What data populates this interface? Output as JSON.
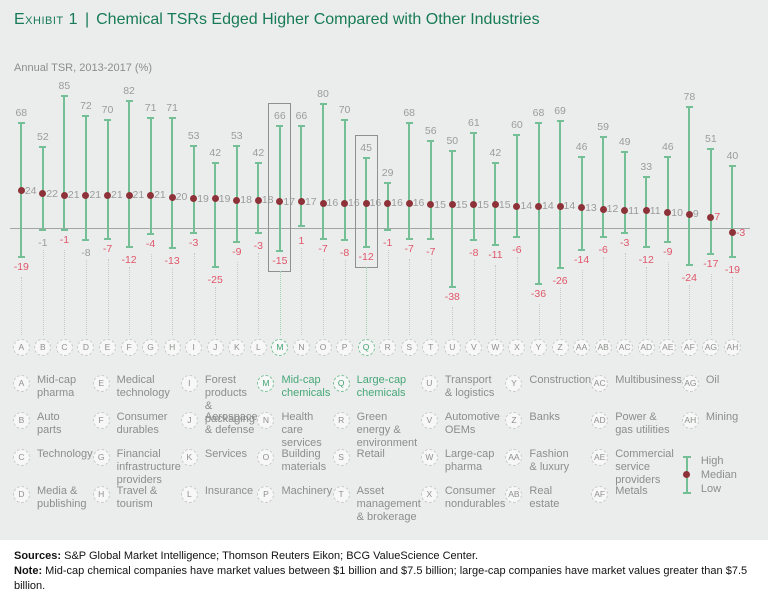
{
  "header": {
    "exhibit_label": "Exhibit 1",
    "separator": "|",
    "title": "Chemical TSRs Edged Higher Compared with Other Industries",
    "subtitle": "Annual TSR, 2013-2017 (%)"
  },
  "colors": {
    "accent_green": "#177b57",
    "line_green": "#74bf95",
    "median_dot": "#8e3239",
    "negative_red": "#e0566a",
    "gray_label": "#9b9b9b",
    "background": "#ebedec"
  },
  "chart_data": {
    "type": "range-high-median-low",
    "title": "Chemical TSRs Edged Higher Compared with Other Industries",
    "ylabel": "Annual TSR, 2013-2017 (%)",
    "ylim": [
      -40,
      90
    ],
    "grid": false,
    "highlighted_categories": [
      "M",
      "Q"
    ],
    "points": [
      {
        "letter": "A",
        "industry": "Mid-cap pharma",
        "high": 68,
        "median": 24,
        "low": -19
      },
      {
        "letter": "B",
        "industry": "Auto parts",
        "high": 52,
        "median": 22,
        "low": -1,
        "low_label_gray": true
      },
      {
        "letter": "C",
        "industry": "Technology",
        "high": 85,
        "median": 21,
        "low": -1
      },
      {
        "letter": "D",
        "industry": "Media & publishing",
        "high": 72,
        "median": 21,
        "low": -8,
        "low_label_gray": true
      },
      {
        "letter": "E",
        "industry": "Medical technology",
        "high": 70,
        "median": 21,
        "low": -7
      },
      {
        "letter": "F",
        "industry": "Consumer durables",
        "high": 82,
        "median": 21,
        "low": -12
      },
      {
        "letter": "G",
        "industry": "Financial infrastructure providers",
        "high": 71,
        "median": 21,
        "low": -4
      },
      {
        "letter": "H",
        "industry": "Travel & tourism",
        "high": 71,
        "median": 20,
        "low": -13
      },
      {
        "letter": "I",
        "industry": "Forest products & packaging",
        "high": 53,
        "median": 19,
        "low": -3
      },
      {
        "letter": "J",
        "industry": "Aerospace & defense",
        "high": 42,
        "median": 19,
        "low": -25
      },
      {
        "letter": "K",
        "industry": "Services",
        "high": 53,
        "median": 18,
        "low": -9
      },
      {
        "letter": "L",
        "industry": "Insurance",
        "high": 42,
        "median": 18,
        "low": -3
      },
      {
        "letter": "M",
        "industry": "Mid-cap chemicals",
        "high": 66,
        "median": 17,
        "low": -15,
        "highlight": true
      },
      {
        "letter": "N",
        "industry": "Health care services",
        "high": 66,
        "median": 17,
        "low": 1
      },
      {
        "letter": "O",
        "industry": "Building materials",
        "high": 80,
        "median": 16,
        "low": -7
      },
      {
        "letter": "P",
        "industry": "Machinery",
        "high": 70,
        "median": 16,
        "low": -8
      },
      {
        "letter": "Q",
        "industry": "Large-cap chemicals",
        "high": 45,
        "median": 16,
        "low": -12,
        "highlight": true
      },
      {
        "letter": "R",
        "industry": "Green energy & environment",
        "high": 29,
        "median": 16,
        "low": -1
      },
      {
        "letter": "S",
        "industry": "Retail",
        "high": 68,
        "median": 16,
        "low": -7
      },
      {
        "letter": "T",
        "industry": "Asset management & brokerage",
        "high": 56,
        "median": 15,
        "low": -7
      },
      {
        "letter": "U",
        "industry": "Transport & logistics",
        "high": 50,
        "median": 15,
        "low": -38
      },
      {
        "letter": "V",
        "industry": "Automotive OEMs",
        "high": 61,
        "median": 15,
        "low": -8
      },
      {
        "letter": "W",
        "industry": "Large-cap pharma",
        "high": 42,
        "median": 15,
        "low": -11
      },
      {
        "letter": "X",
        "industry": "Consumer nondurables",
        "high": 60,
        "median": 14,
        "low": -6
      },
      {
        "letter": "Y",
        "industry": "Construction",
        "high": 68,
        "median": 14,
        "low": -36
      },
      {
        "letter": "Z",
        "industry": "Banks",
        "high": 69,
        "median": 14,
        "low": -26
      },
      {
        "letter": "AA",
        "industry": "Fashion & luxury",
        "high": 46,
        "median": 13,
        "low": -14
      },
      {
        "letter": "AB",
        "industry": "Real estate",
        "high": 59,
        "median": 12,
        "low": -6
      },
      {
        "letter": "AC",
        "industry": "Multibusiness",
        "high": 49,
        "median": 11,
        "low": -3
      },
      {
        "letter": "AD",
        "industry": "Power & gas utilities",
        "high": 33,
        "median": 11,
        "low": -12
      },
      {
        "letter": "AE",
        "industry": "Commercial service providers",
        "high": 46,
        "median": 10,
        "low": -9
      },
      {
        "letter": "AF",
        "industry": "Metals",
        "high": 78,
        "median": 9,
        "low": -24
      },
      {
        "letter": "AG",
        "industry": "Oil",
        "high": 51,
        "median": 7,
        "low": -17,
        "median_label_red": true
      },
      {
        "letter": "AH",
        "industry": "Mining",
        "high": 40,
        "median": -3,
        "low": -19,
        "median_label_red": true
      }
    ]
  },
  "legend": {
    "columns": [
      [
        {
          "letter": "A",
          "label": "Mid-cap\npharma"
        },
        {
          "letter": "B",
          "label": "Auto\nparts"
        },
        {
          "letter": "C",
          "label": "Technology"
        },
        {
          "letter": "D",
          "label": "Media &\npublishing"
        }
      ],
      [
        {
          "letter": "E",
          "label": "Medical\ntechnology"
        },
        {
          "letter": "F",
          "label": "Consumer\ndurables"
        },
        {
          "letter": "G",
          "label": "Financial\ninfrastructure\nproviders"
        },
        {
          "letter": "H",
          "label": "Travel &\ntourism"
        }
      ],
      [
        {
          "letter": "I",
          "label": "Forest\nproducts\n& packaging"
        },
        {
          "letter": "J",
          "label": "Aerospace\n& defense"
        },
        {
          "letter": "K",
          "label": "Services"
        },
        {
          "letter": "L",
          "label": "Insurance"
        }
      ],
      [
        {
          "letter": "M",
          "label": "Mid-cap\nchemicals",
          "green": true
        },
        {
          "letter": "N",
          "label": "Health care\nservices"
        },
        {
          "letter": "O",
          "label": "Building\nmaterials"
        },
        {
          "letter": "P",
          "label": "Machinery"
        }
      ],
      [
        {
          "letter": "Q",
          "label": "Large-cap\nchemicals",
          "green": true
        },
        {
          "letter": "R",
          "label": "Green\nenergy &\nenvironment"
        },
        {
          "letter": "S",
          "label": "Retail"
        },
        {
          "letter": "T",
          "label": "Asset\nmanagement\n& brokerage"
        }
      ],
      [
        {
          "letter": "U",
          "label": "Transport\n& logistics"
        },
        {
          "letter": "V",
          "label": "Automotive\nOEMs"
        },
        {
          "letter": "W",
          "label": "Large-cap\npharma"
        },
        {
          "letter": "X",
          "label": "Consumer\nnondurables"
        }
      ],
      [
        {
          "letter": "Y",
          "label": "Construction"
        },
        {
          "letter": "Z",
          "label": "Banks"
        },
        {
          "letter": "AA",
          "label": "Fashion\n& luxury"
        },
        {
          "letter": "AB",
          "label": "Real\nestate"
        }
      ],
      [
        {
          "letter": "AC",
          "label": "Multibusiness"
        },
        {
          "letter": "AD",
          "label": "Power &\ngas utilities"
        },
        {
          "letter": "AE",
          "label": "Commercial\nservice\nproviders"
        },
        {
          "letter": "AF",
          "label": "Metals"
        }
      ],
      [
        {
          "letter": "AG",
          "label": "Oil"
        },
        {
          "letter": "AH",
          "label": "Mining"
        },
        {
          "key": true
        }
      ]
    ],
    "key": {
      "high": "High",
      "median": "Median",
      "low": "Low"
    }
  },
  "footer": {
    "sources_label": "Sources:",
    "sources_text": " S&P Global Market Intelligence; Thomson Reuters Eikon; BCG ValueScience Center.",
    "note_label": "Note:",
    "note_text": " Mid-cap chemical companies have market values between $1 billion and $7.5 billion; large-cap companies have market values greater than $7.5 billion."
  }
}
